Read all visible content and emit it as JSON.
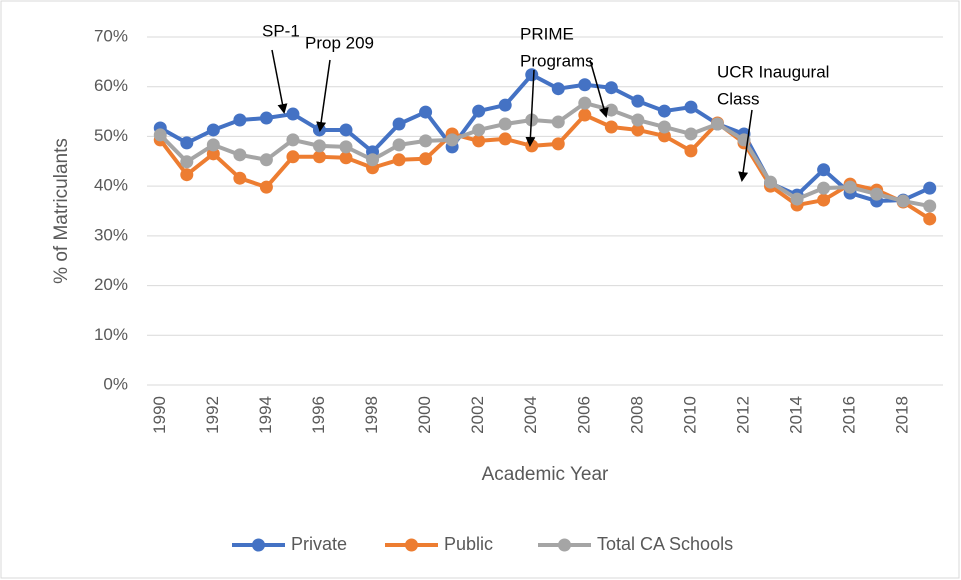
{
  "chart_data": {
    "type": "line",
    "x": [
      1990,
      1991,
      1992,
      1993,
      1994,
      1995,
      1996,
      1997,
      1998,
      1999,
      2000,
      2001,
      2002,
      2003,
      2004,
      2005,
      2006,
      2007,
      2008,
      2009,
      2010,
      2011,
      2012,
      2013,
      2014,
      2015,
      2016,
      2017,
      2018,
      2019
    ],
    "series": [
      {
        "name": "Private",
        "color": "#4472c4",
        "values": [
          51.7,
          48.7,
          51.3,
          53.3,
          53.7,
          54.5,
          51.3,
          51.3,
          46.9,
          52.5,
          54.9,
          47.9,
          55.1,
          56.3,
          62.4,
          59.6,
          60.4,
          59.8,
          57.1,
          55.1,
          55.9,
          52.5,
          50.5,
          40.6,
          38.2,
          43.3,
          38.6,
          37.0,
          37.2,
          39.6
        ]
      },
      {
        "name": "Public",
        "color": "#ed7d31",
        "values": [
          49.3,
          42.3,
          46.5,
          41.6,
          39.8,
          45.9,
          45.9,
          45.7,
          43.7,
          45.3,
          45.5,
          50.5,
          49.1,
          49.5,
          48.1,
          48.5,
          54.3,
          51.9,
          51.3,
          50.1,
          47.1,
          52.7,
          48.7,
          40.0,
          36.2,
          37.2,
          40.4,
          39.2,
          36.8,
          33.4
        ]
      },
      {
        "name": "Total CA Schools",
        "color": "#a5a5a5",
        "values": [
          50.3,
          44.9,
          48.3,
          46.3,
          45.3,
          49.3,
          48.1,
          47.9,
          45.3,
          48.3,
          49.1,
          49.3,
          51.3,
          52.5,
          53.3,
          52.9,
          56.7,
          55.3,
          53.3,
          51.9,
          50.5,
          52.5,
          49.3,
          40.8,
          37.4,
          39.6,
          39.8,
          38.4,
          37.0,
          36.0
        ]
      }
    ],
    "xlim": [
      1989.5,
      2019.5
    ],
    "xticks": [
      1990,
      1992,
      1994,
      1996,
      1998,
      2000,
      2002,
      2004,
      2006,
      2008,
      2010,
      2012,
      2014,
      2016,
      2018
    ],
    "ylim": [
      0,
      70
    ],
    "yticks": [
      {
        "value": 0,
        "label": "0%"
      },
      {
        "value": 10,
        "label": "10%"
      },
      {
        "value": 20,
        "label": "20%"
      },
      {
        "value": 30,
        "label": "30%"
      },
      {
        "value": 40,
        "label": "40%"
      },
      {
        "value": 50,
        "label": "50%"
      },
      {
        "value": 60,
        "label": "60%"
      },
      {
        "value": 70,
        "label": "70%"
      }
    ],
    "xlabel": "Academic Year",
    "ylabel": "% of Matriculants",
    "grid": true,
    "legend": "bottom",
    "annotations": [
      {
        "lines": [
          "SP-1"
        ]
      },
      {
        "lines": [
          "Prop 209"
        ]
      },
      {
        "lines": [
          "PRIME",
          "Programs"
        ]
      },
      {
        "lines": [
          "UCR Inaugural",
          "Class"
        ]
      }
    ]
  }
}
